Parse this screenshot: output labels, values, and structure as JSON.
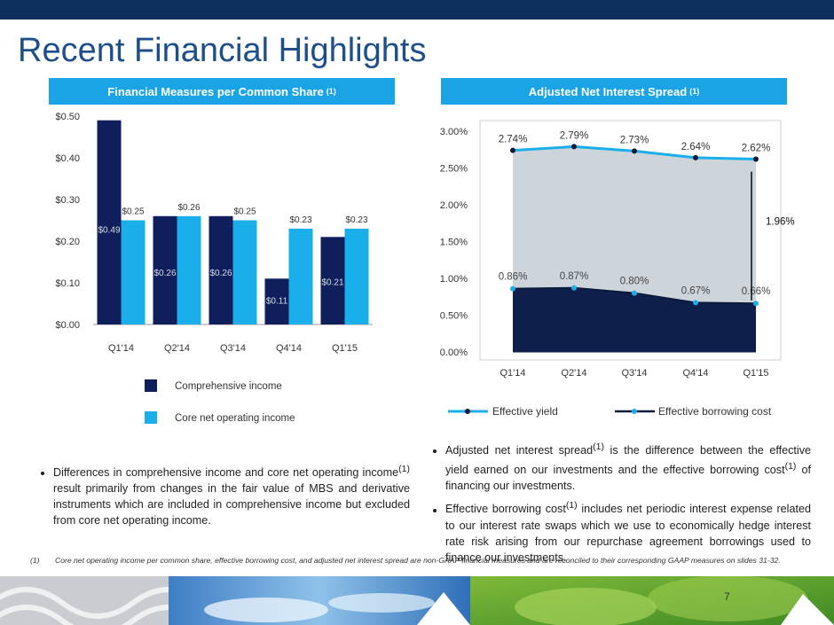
{
  "title": "Recent Financial Highlights",
  "left_section": {
    "heading": "Financial Measures per Common Share",
    "heading_sup": "(1)"
  },
  "right_section": {
    "heading": "Adjusted Net Interest Spread",
    "heading_sup": "(1)"
  },
  "chart_data": [
    {
      "type": "bar",
      "categories": [
        "Q1'14",
        "Q2'14",
        "Q3'14",
        "Q4'14",
        "Q1'15"
      ],
      "series": [
        {
          "name": "Comprehensive income",
          "values": [
            0.49,
            0.26,
            0.26,
            0.11,
            0.21
          ],
          "labels": [
            "$0.49",
            "$0.26",
            "$0.26",
            "$0.11",
            "$0.21"
          ],
          "color": "#0e1f5b"
        },
        {
          "name": "Core net operating income",
          "values": [
            0.25,
            0.26,
            0.25,
            0.23,
            0.23
          ],
          "labels": [
            "$0.25",
            "$0.26",
            "$0.25",
            "$0.23",
            "$0.23"
          ],
          "color": "#1aaeea"
        }
      ],
      "yticks": [
        0,
        0.1,
        0.2,
        0.3,
        0.4,
        0.5
      ],
      "ytick_labels": [
        "$0.00",
        "$0.10",
        "$0.20",
        "$0.30",
        "$0.40",
        "$0.50"
      ],
      "ylim": [
        0,
        0.5
      ],
      "legend": "bottom"
    },
    {
      "type": "area",
      "categories": [
        "Q1'14",
        "Q2'14",
        "Q3'14",
        "Q4'14",
        "Q1'15"
      ],
      "series": [
        {
          "name": "Effective yield",
          "values": [
            2.74,
            2.79,
            2.73,
            2.64,
            2.62
          ],
          "labels": [
            "2.74%",
            "2.79%",
            "2.73%",
            "2.64%",
            "2.62%"
          ],
          "line_color": "#1aaeea",
          "fill_color": "#cdd4da",
          "marker_color": "#0a1a3a"
        },
        {
          "name": "Effective borrowing cost",
          "values": [
            0.86,
            0.87,
            0.8,
            0.67,
            0.66
          ],
          "labels": [
            "0.86%",
            "0.87%",
            "0.80%",
            "0.67%",
            "0.66%"
          ],
          "line_color": "#0a1a3a",
          "fill_color": "#0e1f4b",
          "marker_color": "#1aaeea"
        }
      ],
      "yticks": [
        0,
        0.5,
        1.0,
        1.5,
        2.0,
        2.5,
        3.0
      ],
      "ytick_labels": [
        "0.00%",
        "0.50%",
        "1.00%",
        "1.50%",
        "2.00%",
        "2.50%",
        "3.00%"
      ],
      "ylim": [
        0,
        3.0
      ],
      "annotation": "1.96%",
      "legend": "bottom"
    }
  ],
  "bullets_left": [
    {
      "pre": "Differences in comprehensive income and core net operating income",
      "sup": "(1)",
      "post": " result primarily from changes in the fair value of MBS and derivative instruments which are included in comprehensive income but excluded from core net operating income."
    }
  ],
  "bullets_right": [
    {
      "p1": "Adjusted net interest spread",
      "s1": "(1)",
      "p2": " is the difference between the effective yield earned on our investments and the effective borrowing cost",
      "s2": "(1)",
      "p3": " of financing our investments."
    },
    {
      "p1": "Effective borrowing cost",
      "s1": "(1)",
      "p2": " includes net periodic interest expense related to our interest rate swaps which we use to economically hedge interest rate risk arising from our repurchase agreement borrowings used to finance our investments.",
      "s2": "",
      "p3": ""
    }
  ],
  "footnote": {
    "mark": "(1)",
    "text": "Core net operating income per common share, effective borrowing cost, and adjusted net interest spread are non-GAAP financial measures and are reconciled to their corresponding GAAP measures on slides 31-32."
  },
  "page_number": "7"
}
